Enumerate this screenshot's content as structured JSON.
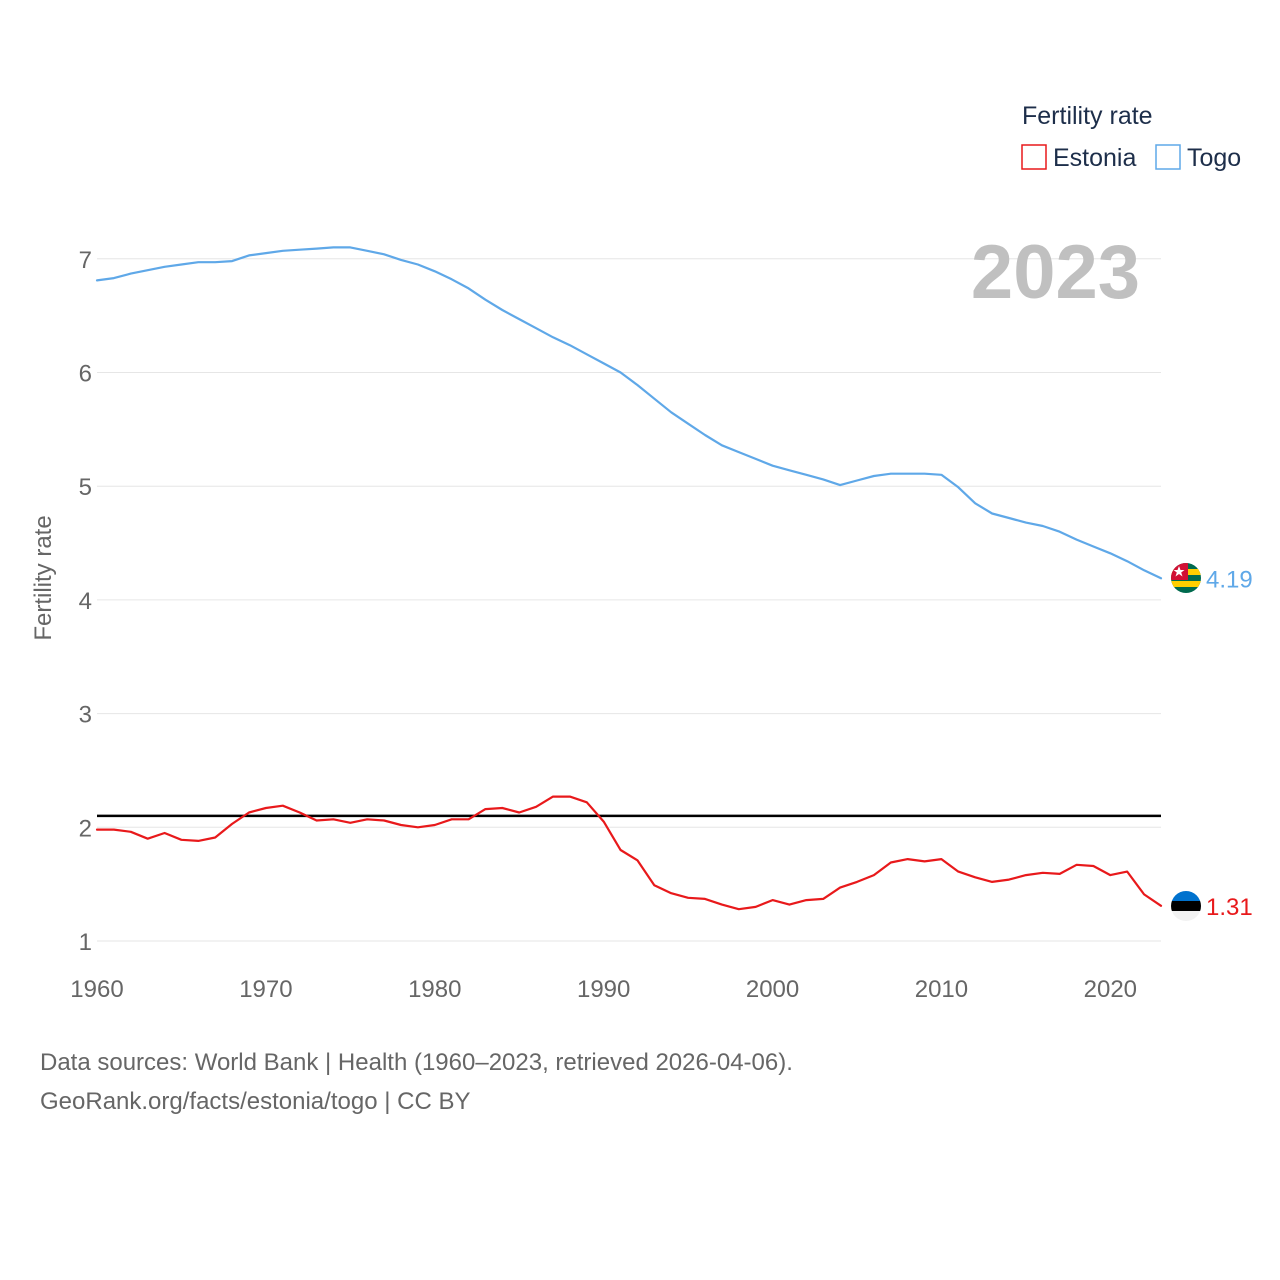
{
  "chart_data": {
    "type": "line",
    "title": "",
    "xlabel": "",
    "ylabel": "Fertility rate",
    "xlim": [
      1960,
      2023
    ],
    "ylim": [
      0.85,
      7.3
    ],
    "yticks": [
      1,
      2,
      3,
      4,
      5,
      6,
      7
    ],
    "xticks": [
      1960,
      1970,
      1980,
      1990,
      2000,
      2010,
      2020
    ],
    "grid": true,
    "year_label": "2023",
    "legend": {
      "title": "Fertility rate",
      "position": "top-right",
      "entries": [
        "Estonia",
        "Togo"
      ]
    },
    "reference_line": {
      "y": 2.1,
      "color": "#000000"
    },
    "x": [
      1960,
      1961,
      1962,
      1963,
      1964,
      1965,
      1966,
      1967,
      1968,
      1969,
      1970,
      1971,
      1972,
      1973,
      1974,
      1975,
      1976,
      1977,
      1978,
      1979,
      1980,
      1981,
      1982,
      1983,
      1984,
      1985,
      1986,
      1987,
      1988,
      1989,
      1990,
      1991,
      1992,
      1993,
      1994,
      1995,
      1996,
      1997,
      1998,
      1999,
      2000,
      2001,
      2002,
      2003,
      2004,
      2005,
      2006,
      2007,
      2008,
      2009,
      2010,
      2011,
      2012,
      2013,
      2014,
      2015,
      2016,
      2017,
      2018,
      2019,
      2020,
      2021,
      2022,
      2023
    ],
    "series": [
      {
        "name": "Togo",
        "color": "#5fa8e8",
        "end_label": "4.19",
        "flag": "togo",
        "values": [
          6.81,
          6.83,
          6.87,
          6.9,
          6.93,
          6.95,
          6.97,
          6.97,
          6.98,
          7.03,
          7.05,
          7.07,
          7.08,
          7.09,
          7.1,
          7.1,
          7.07,
          7.04,
          6.99,
          6.95,
          6.89,
          6.82,
          6.74,
          6.64,
          6.55,
          6.47,
          6.39,
          6.31,
          6.24,
          6.16,
          6.08,
          6.0,
          5.89,
          5.77,
          5.65,
          5.55,
          5.45,
          5.36,
          5.3,
          5.24,
          5.18,
          5.14,
          5.1,
          5.06,
          5.01,
          5.05,
          5.09,
          5.11,
          5.11,
          5.11,
          5.1,
          4.99,
          4.85,
          4.76,
          4.72,
          4.68,
          4.65,
          4.6,
          4.53,
          4.47,
          4.41,
          4.34,
          4.26,
          4.19
        ]
      },
      {
        "name": "Estonia",
        "color": "#e8191b",
        "end_label": "1.31",
        "flag": "estonia",
        "values": [
          1.98,
          1.98,
          1.96,
          1.9,
          1.95,
          1.89,
          1.88,
          1.91,
          2.03,
          2.13,
          2.17,
          2.19,
          2.13,
          2.06,
          2.07,
          2.04,
          2.07,
          2.06,
          2.02,
          2.0,
          2.02,
          2.07,
          2.07,
          2.16,
          2.17,
          2.13,
          2.18,
          2.27,
          2.27,
          2.22,
          2.05,
          1.8,
          1.71,
          1.49,
          1.42,
          1.38,
          1.37,
          1.32,
          1.28,
          1.3,
          1.36,
          1.32,
          1.36,
          1.37,
          1.47,
          1.52,
          1.58,
          1.69,
          1.72,
          1.7,
          1.72,
          1.61,
          1.56,
          1.52,
          1.54,
          1.58,
          1.6,
          1.59,
          1.67,
          1.66,
          1.58,
          1.61,
          1.41,
          1.31
        ]
      }
    ]
  },
  "source": {
    "line1": "Data sources: World Bank | Health (1960–2023, retrieved 2026-04-06).",
    "line2": "GeoRank.org/facts/estonia/togo | CC BY"
  }
}
